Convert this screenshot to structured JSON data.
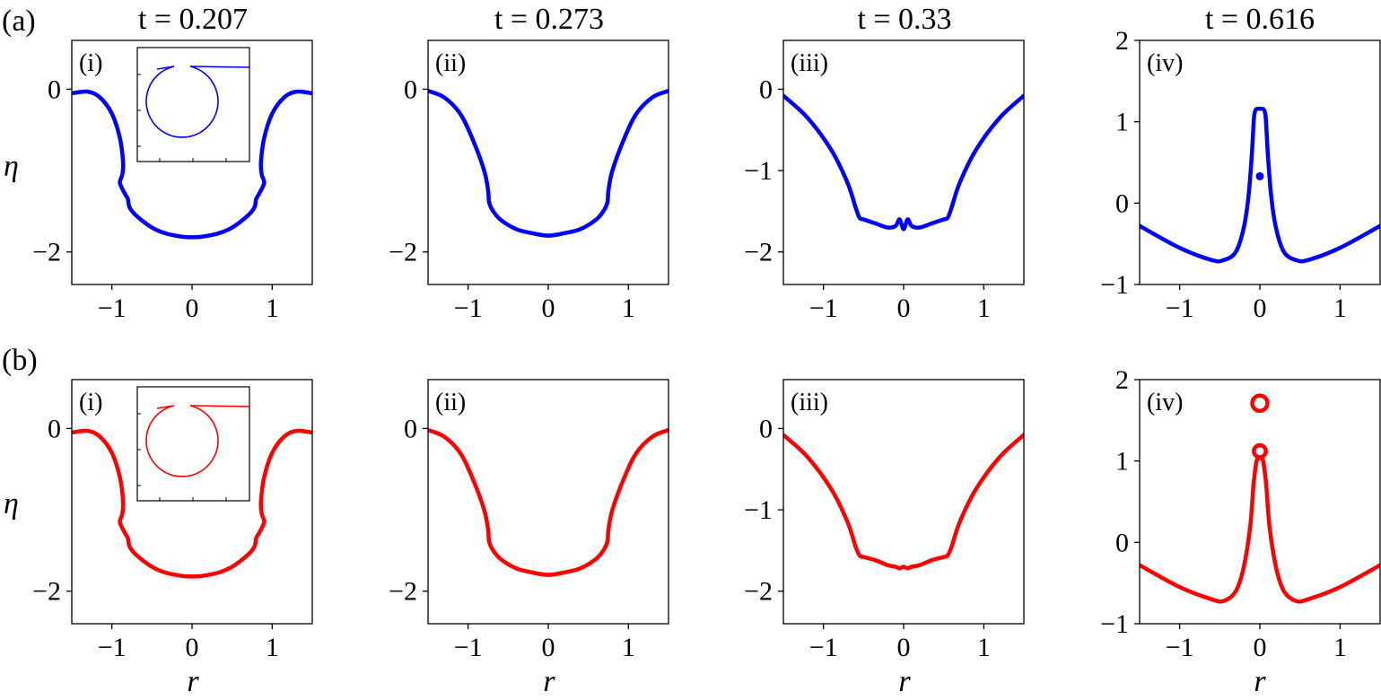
{
  "row_labels": [
    "(a)",
    "(b)"
  ],
  "y_axis_label": "η",
  "x_axis_label": "r",
  "column_titles": [
    "t = 0.207",
    "t = 0.273",
    "t = 0.33",
    "t = 0.616"
  ],
  "panel_tags": [
    "(i)",
    "(ii)",
    "(iii)",
    "(iv)"
  ],
  "colors": {
    "row_a": "#0000ff",
    "row_b": "#ff0000",
    "axes": "#000000"
  },
  "chart_data": [
    {
      "type": "line",
      "row": "a",
      "col": 0,
      "tag": "(i)",
      "title": "t = 0.207",
      "xlim": [
        -1.5,
        1.5
      ],
      "ylim": [
        -2.4,
        0.6
      ],
      "xticks": [
        -1,
        0,
        1
      ],
      "xtick_labels": [
        "−1",
        "0",
        "1"
      ],
      "yticks": [
        -2,
        0
      ],
      "ytick_labels": [
        "−2",
        "0"
      ],
      "inset": true,
      "series": [
        {
          "x": [
            -1.5,
            -1.3,
            -1.15,
            -1.0,
            -0.9,
            -0.86,
            -0.87,
            -0.9,
            -0.84,
            -0.8,
            -0.78,
            -0.7,
            -0.5,
            -0.3,
            0.0,
            0.3,
            0.5,
            0.7,
            0.78,
            0.8,
            0.84,
            0.9,
            0.87,
            0.86,
            0.9,
            1.0,
            1.15,
            1.3,
            1.5
          ],
          "y": [
            -0.05,
            -0.03,
            -0.1,
            -0.3,
            -0.6,
            -0.9,
            -1.05,
            -1.15,
            -1.28,
            -1.35,
            -1.45,
            -1.55,
            -1.7,
            -1.78,
            -1.82,
            -1.78,
            -1.7,
            -1.55,
            -1.45,
            -1.35,
            -1.28,
            -1.15,
            -1.05,
            -0.9,
            -0.6,
            -0.3,
            -0.1,
            -0.03,
            -0.05
          ]
        }
      ]
    },
    {
      "type": "line",
      "row": "a",
      "col": 1,
      "tag": "(ii)",
      "title": "t = 0.273",
      "xlim": [
        -1.5,
        1.5
      ],
      "ylim": [
        -2.4,
        0.6
      ],
      "xticks": [
        -1,
        0,
        1
      ],
      "xtick_labels": [
        "−1",
        "0",
        "1"
      ],
      "yticks": [
        -2,
        0
      ],
      "ytick_labels": [
        "−2",
        "0"
      ],
      "series": [
        {
          "x": [
            -1.5,
            -1.3,
            -1.1,
            -0.95,
            -0.8,
            -0.75,
            -0.74,
            -0.7,
            -0.6,
            -0.4,
            -0.2,
            0.0,
            0.2,
            0.4,
            0.6,
            0.7,
            0.74,
            0.75,
            0.8,
            0.95,
            1.1,
            1.3,
            1.5
          ],
          "y": [
            -0.02,
            -0.1,
            -0.3,
            -0.6,
            -1.0,
            -1.25,
            -1.38,
            -1.48,
            -1.6,
            -1.72,
            -1.77,
            -1.8,
            -1.77,
            -1.72,
            -1.6,
            -1.48,
            -1.38,
            -1.25,
            -1.0,
            -0.6,
            -0.3,
            -0.1,
            -0.02
          ]
        }
      ]
    },
    {
      "type": "line",
      "row": "a",
      "col": 2,
      "tag": "(iii)",
      "title": "t = 0.33",
      "xlim": [
        -1.5,
        1.5
      ],
      "ylim": [
        -2.4,
        0.6
      ],
      "xticks": [
        -1,
        0,
        1
      ],
      "xtick_labels": [
        "−1",
        "0",
        "1"
      ],
      "yticks": [
        -2,
        -1,
        0
      ],
      "ytick_labels": [
        "−2",
        "−1",
        "0"
      ],
      "series": [
        {
          "x": [
            -1.5,
            -1.2,
            -0.9,
            -0.7,
            -0.6,
            -0.55,
            -0.5,
            -0.35,
            -0.2,
            -0.1,
            -0.05,
            0.0,
            0.05,
            0.1,
            0.2,
            0.35,
            0.5,
            0.55,
            0.6,
            0.7,
            0.9,
            1.2,
            1.5
          ],
          "y": [
            -0.08,
            -0.35,
            -0.75,
            -1.15,
            -1.45,
            -1.58,
            -1.6,
            -1.65,
            -1.7,
            -1.68,
            -1.6,
            -1.72,
            -1.6,
            -1.68,
            -1.7,
            -1.65,
            -1.6,
            -1.58,
            -1.45,
            -1.15,
            -0.75,
            -0.35,
            -0.08
          ]
        }
      ]
    },
    {
      "type": "line",
      "row": "a",
      "col": 3,
      "tag": "(iv)",
      "title": "t = 0.616",
      "xlim": [
        -1.5,
        1.5
      ],
      "ylim": [
        -1,
        2
      ],
      "xticks": [
        -1,
        0,
        1
      ],
      "xtick_labels": [
        "−1",
        "0",
        "1"
      ],
      "yticks": [
        -1,
        0,
        1,
        2
      ],
      "ytick_labels": [
        "−1",
        "0",
        "1",
        "2"
      ],
      "series": [
        {
          "x": [
            -1.5,
            -1.0,
            -0.6,
            -0.45,
            -0.3,
            -0.2,
            -0.14,
            -0.1,
            -0.08,
            -0.07,
            -0.05,
            0.0,
            0.05,
            0.07,
            0.08,
            0.1,
            0.14,
            0.2,
            0.3,
            0.45,
            0.6,
            1.0,
            1.5
          ],
          "y": [
            -0.28,
            -0.55,
            -0.7,
            -0.7,
            -0.6,
            -0.3,
            0.1,
            0.6,
            0.95,
            1.08,
            1.15,
            1.16,
            1.15,
            1.08,
            0.95,
            0.6,
            0.1,
            -0.3,
            -0.6,
            -0.7,
            -0.7,
            -0.55,
            -0.28
          ]
        }
      ],
      "droplets": [
        {
          "x": 0.0,
          "y": 0.33,
          "r": 0.03
        }
      ]
    },
    {
      "type": "line",
      "row": "b",
      "col": 0,
      "tag": "(i)",
      "title": "",
      "xlim": [
        -1.5,
        1.5
      ],
      "ylim": [
        -2.4,
        0.6
      ],
      "xticks": [
        -1,
        0,
        1
      ],
      "xtick_labels": [
        "−1",
        "0",
        "1"
      ],
      "yticks": [
        -2,
        0
      ],
      "ytick_labels": [
        "−2",
        "0"
      ],
      "inset": true,
      "series": [
        {
          "x": [
            -1.5,
            -1.3,
            -1.15,
            -1.0,
            -0.9,
            -0.86,
            -0.87,
            -0.9,
            -0.84,
            -0.8,
            -0.78,
            -0.7,
            -0.5,
            -0.3,
            0.0,
            0.3,
            0.5,
            0.7,
            0.78,
            0.8,
            0.84,
            0.9,
            0.87,
            0.86,
            0.9,
            1.0,
            1.15,
            1.3,
            1.5
          ],
          "y": [
            -0.05,
            -0.03,
            -0.1,
            -0.3,
            -0.6,
            -0.9,
            -1.05,
            -1.15,
            -1.28,
            -1.35,
            -1.45,
            -1.55,
            -1.7,
            -1.78,
            -1.82,
            -1.78,
            -1.7,
            -1.55,
            -1.45,
            -1.35,
            -1.28,
            -1.15,
            -1.05,
            -0.9,
            -0.6,
            -0.3,
            -0.1,
            -0.03,
            -0.05
          ]
        }
      ]
    },
    {
      "type": "line",
      "row": "b",
      "col": 1,
      "tag": "(ii)",
      "title": "",
      "xlim": [
        -1.5,
        1.5
      ],
      "ylim": [
        -2.4,
        0.6
      ],
      "xticks": [
        -1,
        0,
        1
      ],
      "xtick_labels": [
        "−1",
        "0",
        "1"
      ],
      "yticks": [
        -2,
        0
      ],
      "ytick_labels": [
        "−2",
        "0"
      ],
      "series": [
        {
          "x": [
            -1.5,
            -1.3,
            -1.1,
            -0.95,
            -0.8,
            -0.75,
            -0.74,
            -0.7,
            -0.6,
            -0.4,
            -0.2,
            0.0,
            0.2,
            0.4,
            0.6,
            0.7,
            0.74,
            0.75,
            0.8,
            0.95,
            1.1,
            1.3,
            1.5
          ],
          "y": [
            -0.02,
            -0.1,
            -0.3,
            -0.6,
            -1.0,
            -1.25,
            -1.38,
            -1.48,
            -1.6,
            -1.72,
            -1.77,
            -1.8,
            -1.77,
            -1.72,
            -1.6,
            -1.48,
            -1.38,
            -1.25,
            -1.0,
            -0.6,
            -0.3,
            -0.1,
            -0.02
          ]
        }
      ]
    },
    {
      "type": "line",
      "row": "b",
      "col": 2,
      "tag": "(iii)",
      "title": "",
      "xlim": [
        -1.5,
        1.5
      ],
      "ylim": [
        -2.4,
        0.6
      ],
      "xticks": [
        -1,
        0,
        1
      ],
      "xtick_labels": [
        "−1",
        "0",
        "1"
      ],
      "yticks": [
        -2,
        -1,
        0
      ],
      "ytick_labels": [
        "−2",
        "−1",
        "0"
      ],
      "series": [
        {
          "x": [
            -1.5,
            -1.2,
            -0.9,
            -0.7,
            -0.6,
            -0.55,
            -0.5,
            -0.35,
            -0.2,
            -0.1,
            -0.05,
            0.0,
            0.05,
            0.1,
            0.2,
            0.35,
            0.5,
            0.55,
            0.6,
            0.7,
            0.9,
            1.2,
            1.5
          ],
          "y": [
            -0.08,
            -0.35,
            -0.75,
            -1.15,
            -1.45,
            -1.56,
            -1.58,
            -1.62,
            -1.68,
            -1.7,
            -1.72,
            -1.7,
            -1.72,
            -1.7,
            -1.68,
            -1.62,
            -1.58,
            -1.56,
            -1.45,
            -1.15,
            -0.75,
            -0.35,
            -0.08
          ]
        }
      ]
    },
    {
      "type": "line",
      "row": "b",
      "col": 3,
      "tag": "(iv)",
      "title": "",
      "xlim": [
        -1.5,
        1.5
      ],
      "ylim": [
        -1,
        2
      ],
      "xticks": [
        -1,
        0,
        1
      ],
      "xtick_labels": [
        "−1",
        "0",
        "1"
      ],
      "yticks": [
        -1,
        0,
        1,
        2
      ],
      "ytick_labels": [
        "−1",
        "0",
        "1",
        "2"
      ],
      "series": [
        {
          "x": [
            -1.5,
            -1.0,
            -0.6,
            -0.45,
            -0.3,
            -0.2,
            -0.12,
            -0.08,
            -0.05,
            -0.04,
            -0.03,
            0.0,
            0.03,
            0.04,
            0.05,
            0.08,
            0.12,
            0.2,
            0.3,
            0.45,
            0.6,
            1.0,
            1.5
          ],
          "y": [
            -0.28,
            -0.55,
            -0.7,
            -0.72,
            -0.6,
            -0.3,
            0.2,
            0.7,
            0.95,
            1.0,
            1.02,
            1.04,
            1.02,
            1.0,
            0.95,
            0.7,
            0.2,
            -0.3,
            -0.6,
            -0.72,
            -0.7,
            -0.55,
            -0.28
          ]
        }
      ],
      "droplets": [
        {
          "x": 0.0,
          "y": 1.12,
          "r": 0.075
        },
        {
          "x": 0.0,
          "y": 1.71,
          "r": 0.095
        }
      ]
    }
  ]
}
